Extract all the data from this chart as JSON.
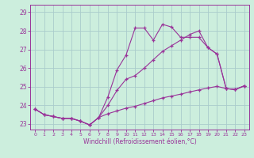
{
  "xlabel": "Windchill (Refroidissement éolien,°C)",
  "bg_color": "#cceedd",
  "grid_color": "#aacccc",
  "line_color": "#993399",
  "xlim": [
    -0.5,
    23.5
  ],
  "ylim": [
    22.7,
    29.4
  ],
  "yticks": [
    23,
    24,
    25,
    26,
    27,
    28,
    29
  ],
  "xticks": [
    0,
    1,
    2,
    3,
    4,
    5,
    6,
    7,
    8,
    9,
    10,
    11,
    12,
    13,
    14,
    15,
    16,
    17,
    18,
    19,
    20,
    21,
    22,
    23
  ],
  "series1_x": [
    0,
    1,
    2,
    3,
    4,
    5,
    6,
    7,
    8,
    9,
    10,
    11,
    12,
    13,
    14,
    15,
    16,
    17,
    18,
    19,
    20,
    21,
    22,
    23
  ],
  "series1_y": [
    23.8,
    23.5,
    23.4,
    23.3,
    23.3,
    23.15,
    22.95,
    23.35,
    24.45,
    25.9,
    26.7,
    28.15,
    28.15,
    27.5,
    28.35,
    28.2,
    27.65,
    27.65,
    27.65,
    27.1,
    26.75,
    24.9,
    24.85,
    25.05
  ],
  "series2_x": [
    0,
    1,
    2,
    3,
    4,
    5,
    6,
    7,
    8,
    9,
    10,
    11,
    12,
    13,
    14,
    15,
    16,
    17,
    18,
    19,
    20,
    21,
    22,
    23
  ],
  "series2_y": [
    23.8,
    23.5,
    23.4,
    23.3,
    23.3,
    23.15,
    22.95,
    23.35,
    24.0,
    24.8,
    25.4,
    25.6,
    26.0,
    26.45,
    26.9,
    27.2,
    27.5,
    27.8,
    28.0,
    27.1,
    26.75,
    24.9,
    24.85,
    25.05
  ],
  "series3_x": [
    0,
    1,
    2,
    3,
    4,
    5,
    6,
    7,
    8,
    9,
    10,
    11,
    12,
    13,
    14,
    15,
    16,
    17,
    18,
    19,
    20,
    21,
    22,
    23
  ],
  "series3_y": [
    23.8,
    23.5,
    23.4,
    23.3,
    23.3,
    23.15,
    22.95,
    23.35,
    23.55,
    23.7,
    23.85,
    23.95,
    24.1,
    24.25,
    24.4,
    24.5,
    24.6,
    24.72,
    24.83,
    24.93,
    25.02,
    24.9,
    24.85,
    25.05
  ]
}
